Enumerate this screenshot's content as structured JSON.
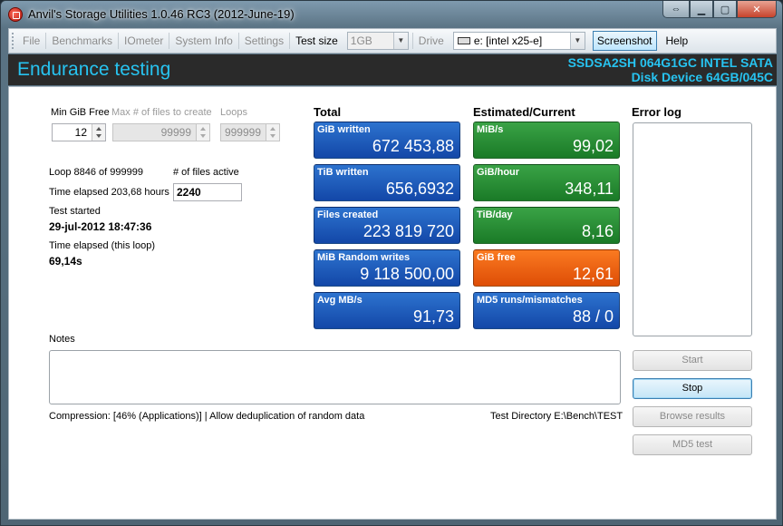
{
  "window": {
    "title": "Anvil's Storage Utilities 1.0.46 RC3 (2012-June-19)"
  },
  "menu": {
    "file": "File",
    "benchmarks": "Benchmarks",
    "iometer": "IOmeter",
    "system_info": "System Info",
    "settings": "Settings",
    "test_size_label": "Test size",
    "test_size_value": "1GB",
    "drive_label": "Drive",
    "drive_value": "e: [intel x25-e]",
    "screenshot": "Screenshot",
    "help": "Help"
  },
  "header": {
    "title": "Endurance testing",
    "device_line1": "SSDSA2SH 064G1GC INTEL SATA",
    "device_line2": "Disk Device 64GB/045C"
  },
  "settings": {
    "min_gib_free_label": "Min GiB Free",
    "min_gib_free_value": "12",
    "max_files_label": "Max # of files to create",
    "max_files_value": "99999",
    "loops_label": "Loops",
    "loops_value": "999999"
  },
  "status": {
    "loop_text": "Loop 8846 of 999999",
    "files_active_label": "# of files active",
    "files_active_value": "2240",
    "time_elapsed_total": "Time elapsed 203,68 hours",
    "test_started_label": "Test started",
    "test_started_value": "29-jul-2012 18:47:36",
    "time_elapsed_loop_label": "Time elapsed (this loop)",
    "time_elapsed_loop_value": "69,14s"
  },
  "total": {
    "heading": "Total",
    "tiles": [
      {
        "label": "GiB written",
        "value": "672 453,88"
      },
      {
        "label": "TiB written",
        "value": "656,6932"
      },
      {
        "label": "Files created",
        "value": "223 819 720"
      },
      {
        "label": "MiB Random writes",
        "value": "9 118 500,00"
      },
      {
        "label": "Avg MB/s",
        "value": "91,73"
      }
    ]
  },
  "estimated": {
    "heading": "Estimated/Current",
    "tiles": [
      {
        "label": "MiB/s",
        "value": "99,02"
      },
      {
        "label": "GiB/hour",
        "value": "348,11"
      },
      {
        "label": "TiB/day",
        "value": "8,16"
      },
      {
        "label": "GiB free",
        "value": "12,61"
      },
      {
        "label": "MD5 runs/mismatches",
        "value": "88 / 0"
      }
    ]
  },
  "error_log": {
    "heading": "Error log"
  },
  "notes": {
    "label": "Notes"
  },
  "footer": {
    "compression": "Compression: [46% (Applications)] | Allow deduplication of random data",
    "test_directory": "Test Directory E:\\Bench\\TEST"
  },
  "buttons": {
    "start": "Start",
    "stop": "Stop",
    "browse_results": "Browse results",
    "md5_test": "MD5 test"
  },
  "colors": {
    "accent_cyan": "#27c3f0",
    "tile_blue": "#1a55b8",
    "tile_green": "#248a31",
    "tile_orange": "#ee5f10"
  }
}
